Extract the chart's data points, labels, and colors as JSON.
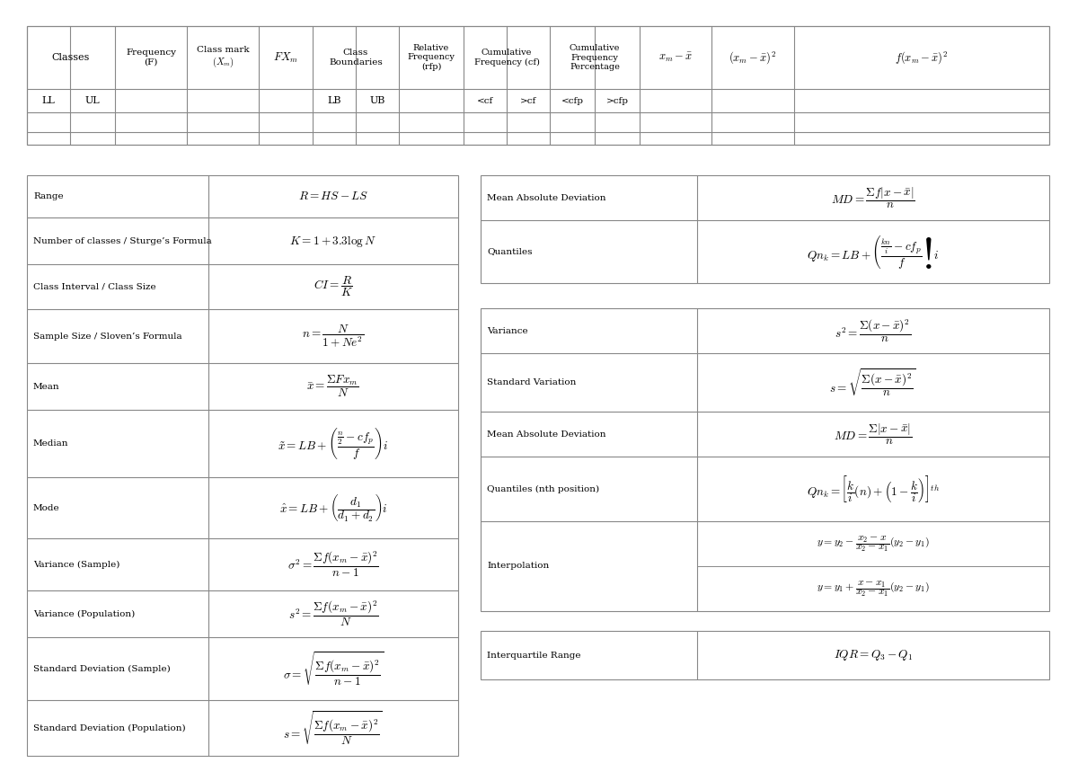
{
  "bg_color": "#ffffff",
  "border_color": "#888888",
  "text_color": "#000000",
  "fig_width": 12.0,
  "fig_height": 8.49,
  "left_table_rows": [
    [
      "Range",
      "$R = HS - LS$"
    ],
    [
      "Number of classes / Sturge’s Formula",
      "$K = 1 + 3.3\\log N$"
    ],
    [
      "Class Interval / Class Size",
      "$CI = \\dfrac{R}{K}$"
    ],
    [
      "Sample Size / Sloven’s Formula",
      "$n = \\dfrac{N}{1 + Ne^2}$"
    ],
    [
      "Mean",
      "$\\bar{x} = \\dfrac{\\Sigma Fx_m}{N}$"
    ],
    [
      "Median",
      "$\\tilde{x} = LB + \\left(\\dfrac{\\frac{n}{2} - cf_p}{f}\\right)i$"
    ],
    [
      "Mode",
      "$\\hat{x} = LB + \\left(\\dfrac{d_1}{d_1 + d_2}\\right)i$"
    ],
    [
      "Variance (Sample)",
      "$\\sigma^2 = \\dfrac{\\Sigma f(x_m - \\bar{x})^2}{n - 1}$"
    ],
    [
      "Variance (Population)",
      "$s^2 = \\dfrac{\\Sigma f(x_m - \\bar{x})^2}{N}$"
    ],
    [
      "Standard Deviation (Sample)",
      "$\\sigma = \\sqrt{\\dfrac{\\Sigma f(x_m - \\bar{x})^2}{n - 1}}$"
    ],
    [
      "Standard Deviation (Population)",
      "$s = \\sqrt{\\dfrac{\\Sigma f(x_m - \\bar{x})^2}{N}}$"
    ]
  ],
  "right_top_rows": [
    [
      "Mean Absolute Deviation",
      "$MD = \\dfrac{\\Sigma f|x - \\bar{x}|}{n}$"
    ],
    [
      "Quantiles",
      "$Qn_k = LB + \\left(\\dfrac{\\frac{kn}{i} - cf_p}{f}\\right)i$"
    ]
  ],
  "right_mid_rows": [
    [
      "Variance",
      "$s^2 = \\dfrac{\\Sigma(x - \\bar{x})^2}{n}$"
    ],
    [
      "Standard Variation",
      "$s = \\sqrt{\\dfrac{\\Sigma(x - \\bar{x})^2}{n}}$"
    ],
    [
      "Mean Absolute Deviation",
      "$MD = \\dfrac{\\Sigma|x - \\bar{x}|}{n}$"
    ],
    [
      "Quantiles (nth position)",
      "$Qn_k = \\left[\\dfrac{k}{i}(n) + \\left(1 - \\dfrac{k}{i}\\right)\\right]^{th}$"
    ],
    [
      "Interpolation",
      "$y = y_2 - \\dfrac{x_2 - x}{x_2 - x_1}(y_2 - y_1)$|||$y = y_1 + \\dfrac{x - x_1}{x_2 - x_1}(y_2 - y_1)$"
    ]
  ],
  "right_bot_rows": [
    [
      "Interquartile Range",
      "$IQR = Q_3 - Q_1$"
    ]
  ]
}
